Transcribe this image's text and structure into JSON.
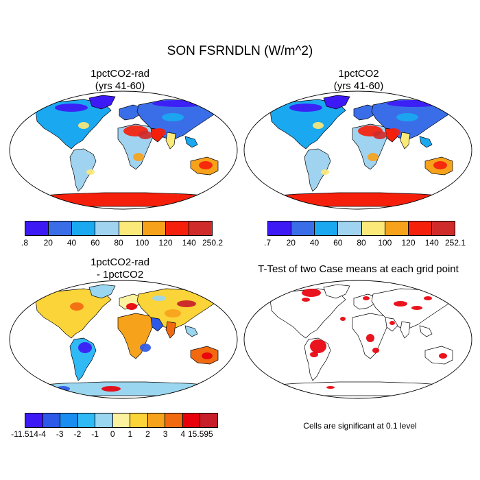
{
  "title": "SON FSRNDLN (W/m^2)",
  "colors": {
    "land": "#6ecbff",
    "ocean": "#ffffff",
    "coast": "#000000",
    "sig": "#e8000b"
  },
  "panels": [
    {
      "id": "p1",
      "title_line1": "1pctCO2-rad",
      "title_line2": "(yrs 41-60)",
      "colorbar": {
        "colors": [
          "#3d19f5",
          "#3a6ee8",
          "#1aa8f0",
          "#9fd3f0",
          "#fbe97a",
          "#f7a21b",
          "#f5200c",
          "#d02b2b"
        ],
        "labels": [
          ".8",
          "20",
          "40",
          "60",
          "80",
          "100",
          "120",
          "140",
          "250.2"
        ]
      }
    },
    {
      "id": "p2",
      "title_line1": "1pctCO2",
      "title_line2": "(yrs 41-60)",
      "colorbar": {
        "colors": [
          "#3d19f5",
          "#3a6ee8",
          "#1aa8f0",
          "#9fd3f0",
          "#fbe97a",
          "#f7a21b",
          "#f5200c",
          "#d02b2b"
        ],
        "labels": [
          ".7",
          "20",
          "40",
          "60",
          "80",
          "100",
          "120",
          "140",
          "252.1"
        ]
      }
    },
    {
      "id": "p3",
      "title_line1": "1pctCO2-rad",
      "title_line2": "- 1pctCO2",
      "colorbar": {
        "colors": [
          "#3d19f5",
          "#2c59e8",
          "#1a8ef0",
          "#2fb9f5",
          "#9ad6f0",
          "#fbf2a0",
          "#fbd43a",
          "#f7a21b",
          "#f26a10",
          "#e8000b",
          "#c81e2a"
        ],
        "labels": [
          "-11.514",
          "-4",
          "-3",
          "-2",
          "-1",
          "0",
          "1",
          "2",
          "3",
          "4",
          "15.595"
        ]
      }
    },
    {
      "id": "p4",
      "title_line1": "T-Test of two Case means at each grid point",
      "title_line2": "",
      "note": "Cells are significant at 0.1 level"
    }
  ]
}
